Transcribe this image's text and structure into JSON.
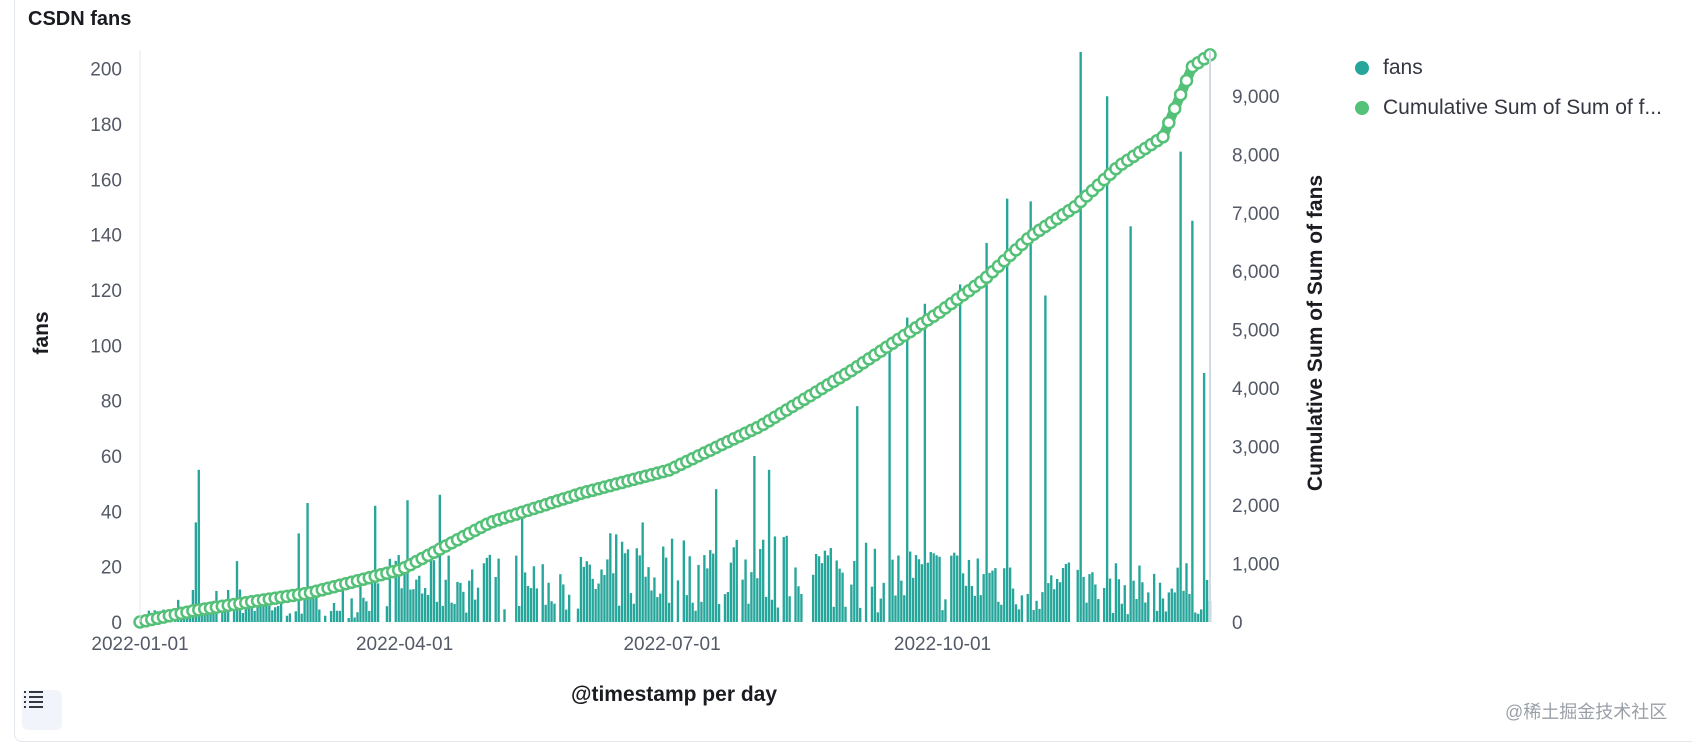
{
  "panel": {
    "title": "CSDN fans"
  },
  "legend": [
    {
      "label": "fans",
      "color": "#26a59a"
    },
    {
      "label": "Cumulative Sum of Sum of f...",
      "color": "#54c078"
    }
  ],
  "toolbar": {
    "table_icon": "list-icon"
  },
  "watermark": "@稀土掘金技术社区",
  "chart_data": {
    "type": "bar",
    "title": "CSDN fans",
    "xlabel": "@timestamp per day",
    "ylabel": "fans",
    "ylabel_right": "Cumulative Sum of Sum of fans",
    "x_ticks": [
      "2022-01-01",
      "2022-04-01",
      "2022-07-01",
      "2022-10-01"
    ],
    "y_ticks": [
      0,
      20,
      40,
      60,
      80,
      100,
      120,
      140,
      160,
      180,
      200
    ],
    "y_tick_labels": [
      "0",
      "20",
      "40",
      "60",
      "80",
      "100",
      "120",
      "140",
      "160",
      "180",
      "200"
    ],
    "y2_ticks": [
      0,
      1000,
      2000,
      3000,
      4000,
      5000,
      6000,
      7000,
      8000,
      9000
    ],
    "y2_tick_labels": [
      "0",
      "1,000",
      "2,000",
      "3,000",
      "4,000",
      "5,000",
      "6,000",
      "7,000",
      "8,000",
      "9,000"
    ],
    "ylim": [
      0,
      206
    ],
    "y2lim": [
      0,
      9750
    ],
    "x_range": [
      "2022-01-01",
      "2022-12-31"
    ],
    "series": [
      {
        "name": "fans",
        "kind": "bar",
        "color": "#26a59a",
        "keypoints": [
          {
            "x": "2022-01-01",
            "y": 2
          },
          {
            "x": "2022-01-08",
            "y": 4
          },
          {
            "x": "2022-01-14",
            "y": 8
          },
          {
            "x": "2022-01-20",
            "y": 36
          },
          {
            "x": "2022-01-21",
            "y": 55
          },
          {
            "x": "2022-02-03",
            "y": 22
          },
          {
            "x": "2022-02-24",
            "y": 32
          },
          {
            "x": "2022-02-27",
            "y": 43
          },
          {
            "x": "2022-03-22",
            "y": 42
          },
          {
            "x": "2022-04-02",
            "y": 44
          },
          {
            "x": "2022-04-13",
            "y": 46
          },
          {
            "x": "2022-05-11",
            "y": 41
          },
          {
            "x": "2022-06-21",
            "y": 36
          },
          {
            "x": "2022-07-16",
            "y": 48
          },
          {
            "x": "2022-07-29",
            "y": 60
          },
          {
            "x": "2022-08-03",
            "y": 55
          },
          {
            "x": "2022-09-02",
            "y": 78
          },
          {
            "x": "2022-09-13",
            "y": 100
          },
          {
            "x": "2022-09-19",
            "y": 110
          },
          {
            "x": "2022-09-25",
            "y": 115
          },
          {
            "x": "2022-10-07",
            "y": 122
          },
          {
            "x": "2022-10-16",
            "y": 137
          },
          {
            "x": "2022-10-23",
            "y": 153
          },
          {
            "x": "2022-10-31",
            "y": 152
          },
          {
            "x": "2022-11-05",
            "y": 118
          },
          {
            "x": "2022-11-17",
            "y": 206
          },
          {
            "x": "2022-11-26",
            "y": 190
          },
          {
            "x": "2022-12-04",
            "y": 143
          },
          {
            "x": "2022-12-21",
            "y": 170
          },
          {
            "x": "2022-12-25",
            "y": 145
          },
          {
            "x": "2022-12-29",
            "y": 90
          }
        ]
      },
      {
        "name": "Cumulative Sum of Sum of fans",
        "kind": "line",
        "color": "#54c078",
        "keypoints": [
          {
            "x": "2022-01-01",
            "y": 0
          },
          {
            "x": "2022-01-20",
            "y": 200
          },
          {
            "x": "2022-02-28",
            "y": 500
          },
          {
            "x": "2022-03-31",
            "y": 900
          },
          {
            "x": "2022-04-30",
            "y": 1700
          },
          {
            "x": "2022-05-31",
            "y": 2200
          },
          {
            "x": "2022-06-30",
            "y": 2600
          },
          {
            "x": "2022-07-31",
            "y": 3350
          },
          {
            "x": "2022-08-31",
            "y": 4300
          },
          {
            "x": "2022-09-30",
            "y": 5300
          },
          {
            "x": "2022-10-15",
            "y": 5850
          },
          {
            "x": "2022-10-31",
            "y": 6600
          },
          {
            "x": "2022-11-15",
            "y": 7100
          },
          {
            "x": "2022-11-30",
            "y": 7800
          },
          {
            "x": "2022-12-15",
            "y": 8300
          },
          {
            "x": "2022-12-25",
            "y": 9500
          },
          {
            "x": "2022-12-31",
            "y": 9700
          }
        ]
      }
    ],
    "legend_position": "right",
    "grid": false
  }
}
